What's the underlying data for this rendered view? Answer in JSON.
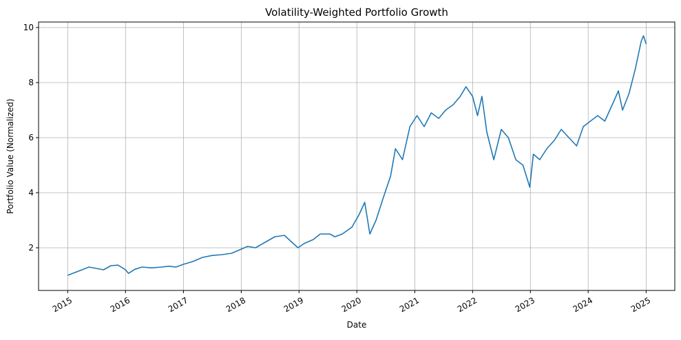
{
  "chart_data": {
    "type": "line",
    "title": "Volatility-Weighted Portfolio Growth",
    "xlabel": "Date",
    "ylabel": "Portfolio Value (Normalized)",
    "x_range": [
      "2014-07-01",
      "2025-07-01"
    ],
    "ylim": [
      0.45,
      10.2
    ],
    "grid": true,
    "x_ticks": [
      "2015",
      "2016",
      "2017",
      "2018",
      "2019",
      "2020",
      "2021",
      "2022",
      "2023",
      "2024",
      "2025"
    ],
    "y_ticks": [
      2,
      4,
      6,
      8,
      10
    ],
    "line_color": "#1f77b4",
    "series": [
      {
        "values": [
          [
            "2015-01-01",
            1.0
          ],
          [
            "2015-02-15",
            1.1
          ],
          [
            "2015-04-01",
            1.2
          ],
          [
            "2015-05-15",
            1.3
          ],
          [
            "2015-07-01",
            1.25
          ],
          [
            "2015-08-15",
            1.2
          ],
          [
            "2015-10-01",
            1.35
          ],
          [
            "2015-11-15",
            1.37
          ],
          [
            "2016-01-01",
            1.2
          ],
          [
            "2016-01-20",
            1.07
          ],
          [
            "2016-03-01",
            1.22
          ],
          [
            "2016-04-15",
            1.3
          ],
          [
            "2016-06-15",
            1.27
          ],
          [
            "2016-08-15",
            1.3
          ],
          [
            "2016-10-01",
            1.33
          ],
          [
            "2016-11-15",
            1.3
          ],
          [
            "2017-01-01",
            1.4
          ],
          [
            "2017-03-01",
            1.5
          ],
          [
            "2017-05-01",
            1.65
          ],
          [
            "2017-07-01",
            1.72
          ],
          [
            "2017-09-01",
            1.75
          ],
          [
            "2017-11-01",
            1.8
          ],
          [
            "2018-01-01",
            1.95
          ],
          [
            "2018-02-10",
            2.05
          ],
          [
            "2018-04-01",
            2.0
          ],
          [
            "2018-06-01",
            2.2
          ],
          [
            "2018-08-01",
            2.4
          ],
          [
            "2018-10-01",
            2.45
          ],
          [
            "2018-12-25",
            2.0
          ],
          [
            "2019-02-01",
            2.15
          ],
          [
            "2019-04-01",
            2.3
          ],
          [
            "2019-05-15",
            2.5
          ],
          [
            "2019-07-15",
            2.5
          ],
          [
            "2019-08-15",
            2.4
          ],
          [
            "2019-10-01",
            2.5
          ],
          [
            "2019-12-01",
            2.75
          ],
          [
            "2020-01-15",
            3.2
          ],
          [
            "2020-02-20",
            3.65
          ],
          [
            "2020-03-23",
            2.5
          ],
          [
            "2020-05-01",
            3.0
          ],
          [
            "2020-06-15",
            3.8
          ],
          [
            "2020-08-01",
            4.6
          ],
          [
            "2020-09-01",
            5.6
          ],
          [
            "2020-10-15",
            5.2
          ],
          [
            "2020-12-01",
            6.4
          ],
          [
            "2021-01-15",
            6.8
          ],
          [
            "2021-03-01",
            6.4
          ],
          [
            "2021-04-15",
            6.9
          ],
          [
            "2021-06-01",
            6.7
          ],
          [
            "2021-07-15",
            7.0
          ],
          [
            "2021-09-01",
            7.2
          ],
          [
            "2021-10-15",
            7.5
          ],
          [
            "2021-11-20",
            7.85
          ],
          [
            "2022-01-01",
            7.5
          ],
          [
            "2022-02-01",
            6.8
          ],
          [
            "2022-03-01",
            7.5
          ],
          [
            "2022-04-01",
            6.2
          ],
          [
            "2022-05-15",
            5.2
          ],
          [
            "2022-07-01",
            6.3
          ],
          [
            "2022-08-15",
            6.0
          ],
          [
            "2022-10-01",
            5.2
          ],
          [
            "2022-11-15",
            5.0
          ],
          [
            "2022-12-28",
            4.2
          ],
          [
            "2023-01-20",
            5.4
          ],
          [
            "2023-03-01",
            5.2
          ],
          [
            "2023-04-15",
            5.6
          ],
          [
            "2023-06-01",
            5.9
          ],
          [
            "2023-07-15",
            6.3
          ],
          [
            "2023-09-01",
            6.0
          ],
          [
            "2023-10-20",
            5.7
          ],
          [
            "2023-12-01",
            6.4
          ],
          [
            "2024-01-15",
            6.6
          ],
          [
            "2024-03-01",
            6.8
          ],
          [
            "2024-04-15",
            6.6
          ],
          [
            "2024-06-01",
            7.2
          ],
          [
            "2024-07-10",
            7.7
          ],
          [
            "2024-08-05",
            7.0
          ],
          [
            "2024-09-15",
            7.6
          ],
          [
            "2024-10-25",
            8.5
          ],
          [
            "2024-12-01",
            9.5
          ],
          [
            "2024-12-15",
            9.7
          ],
          [
            "2025-01-01",
            9.4
          ]
        ]
      }
    ]
  }
}
